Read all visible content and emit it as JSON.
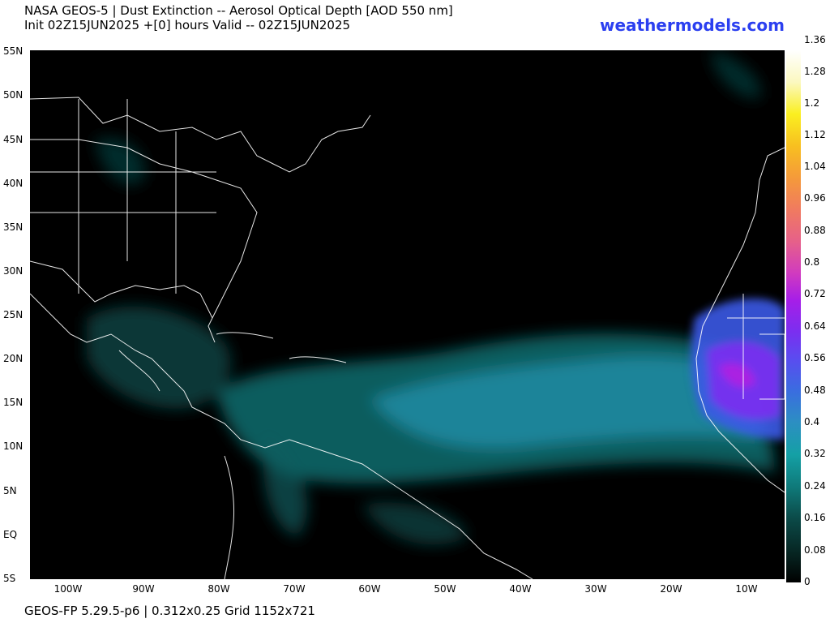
{
  "header": {
    "title_line1": "NASA GEOS-5 | Dust Extinction -- Aerosol Optical Depth [AOD 550 nm]",
    "title_line2": "Init 02Z15JUN2025 +[0] hours Valid -- 02Z15JUN2025",
    "brand": "weathermodels.com"
  },
  "map": {
    "lat_labels": [
      "55N",
      "50N",
      "45N",
      "40N",
      "35N",
      "30N",
      "25N",
      "20N",
      "15N",
      "10N",
      "5N",
      "EQ",
      "5S"
    ],
    "lon_labels": [
      "100W",
      "90W",
      "80W",
      "70W",
      "60W",
      "50W",
      "40W",
      "30W",
      "20W",
      "10W"
    ],
    "plume": {
      "peak_aod": 0.6,
      "region": "Saharan dust plume across tropical Atlantic"
    }
  },
  "colorbar": {
    "ticks": [
      "1.36",
      "1.28",
      "1.2",
      "1.12",
      "1.04",
      "0.96",
      "0.88",
      "0.8",
      "0.72",
      "0.64",
      "0.56",
      "0.48",
      "0.4",
      "0.32",
      "0.24",
      "0.16",
      "0.08",
      "0"
    ],
    "min": 0,
    "max": 1.36
  },
  "footer": {
    "text": "GEOS-FP 5.29.5-p6 | 0.312x0.25 Grid 1152x721"
  }
}
